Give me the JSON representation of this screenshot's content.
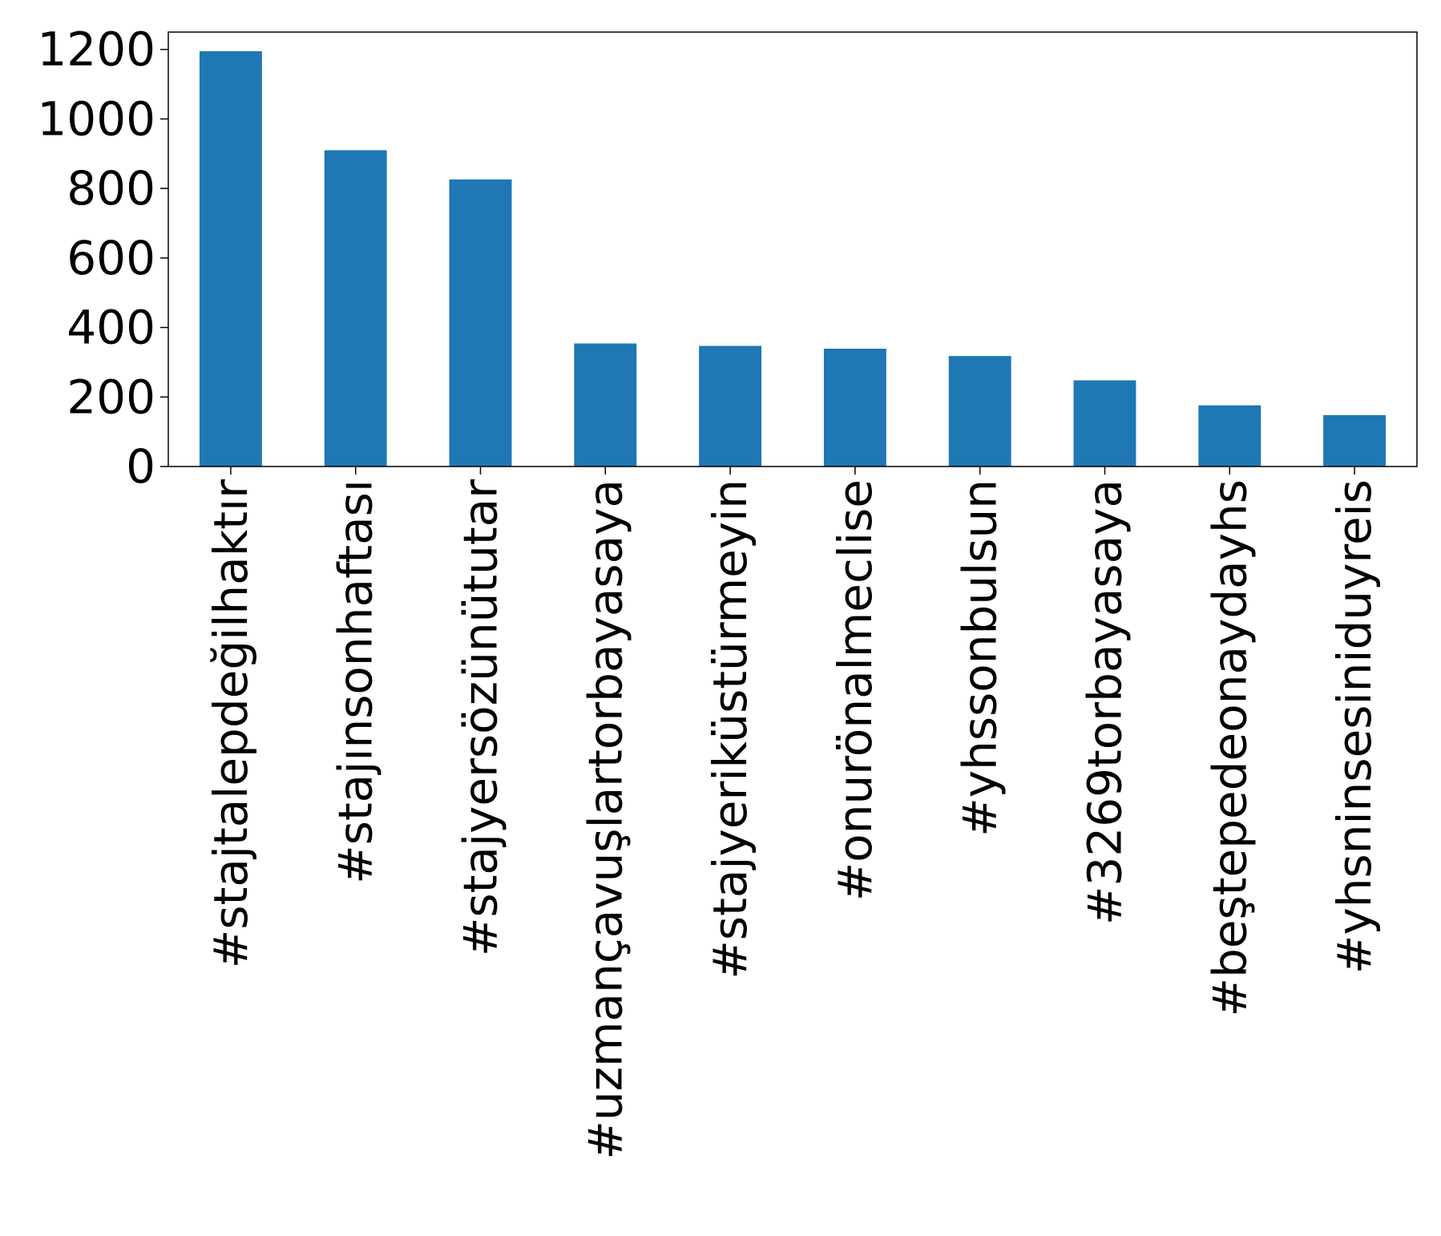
{
  "chart_data": {
    "type": "bar",
    "title": "",
    "xlabel": "",
    "ylabel": "",
    "categories": [
      "#stajtalepdeğilhaktır",
      "#stajınsonhaftası",
      "#stajyersözünütutar",
      "#uzmançavuşlartorbayasaya",
      "#stajyeriküstürmeyin",
      "#onurönalmeclise",
      "#yhssonbulsun",
      "#3269torbayasaya",
      "#beştepedeonaydayhs",
      "#yhsninsesiniduyreis"
    ],
    "values": [
      1195,
      910,
      826,
      354,
      347,
      339,
      318,
      248,
      176,
      148
    ],
    "ylim": [
      0,
      1250
    ],
    "yticks": [
      0,
      200,
      400,
      600,
      800,
      1000,
      1200
    ],
    "bar_color": "#1f77b4",
    "grid": false,
    "legend": "none"
  }
}
